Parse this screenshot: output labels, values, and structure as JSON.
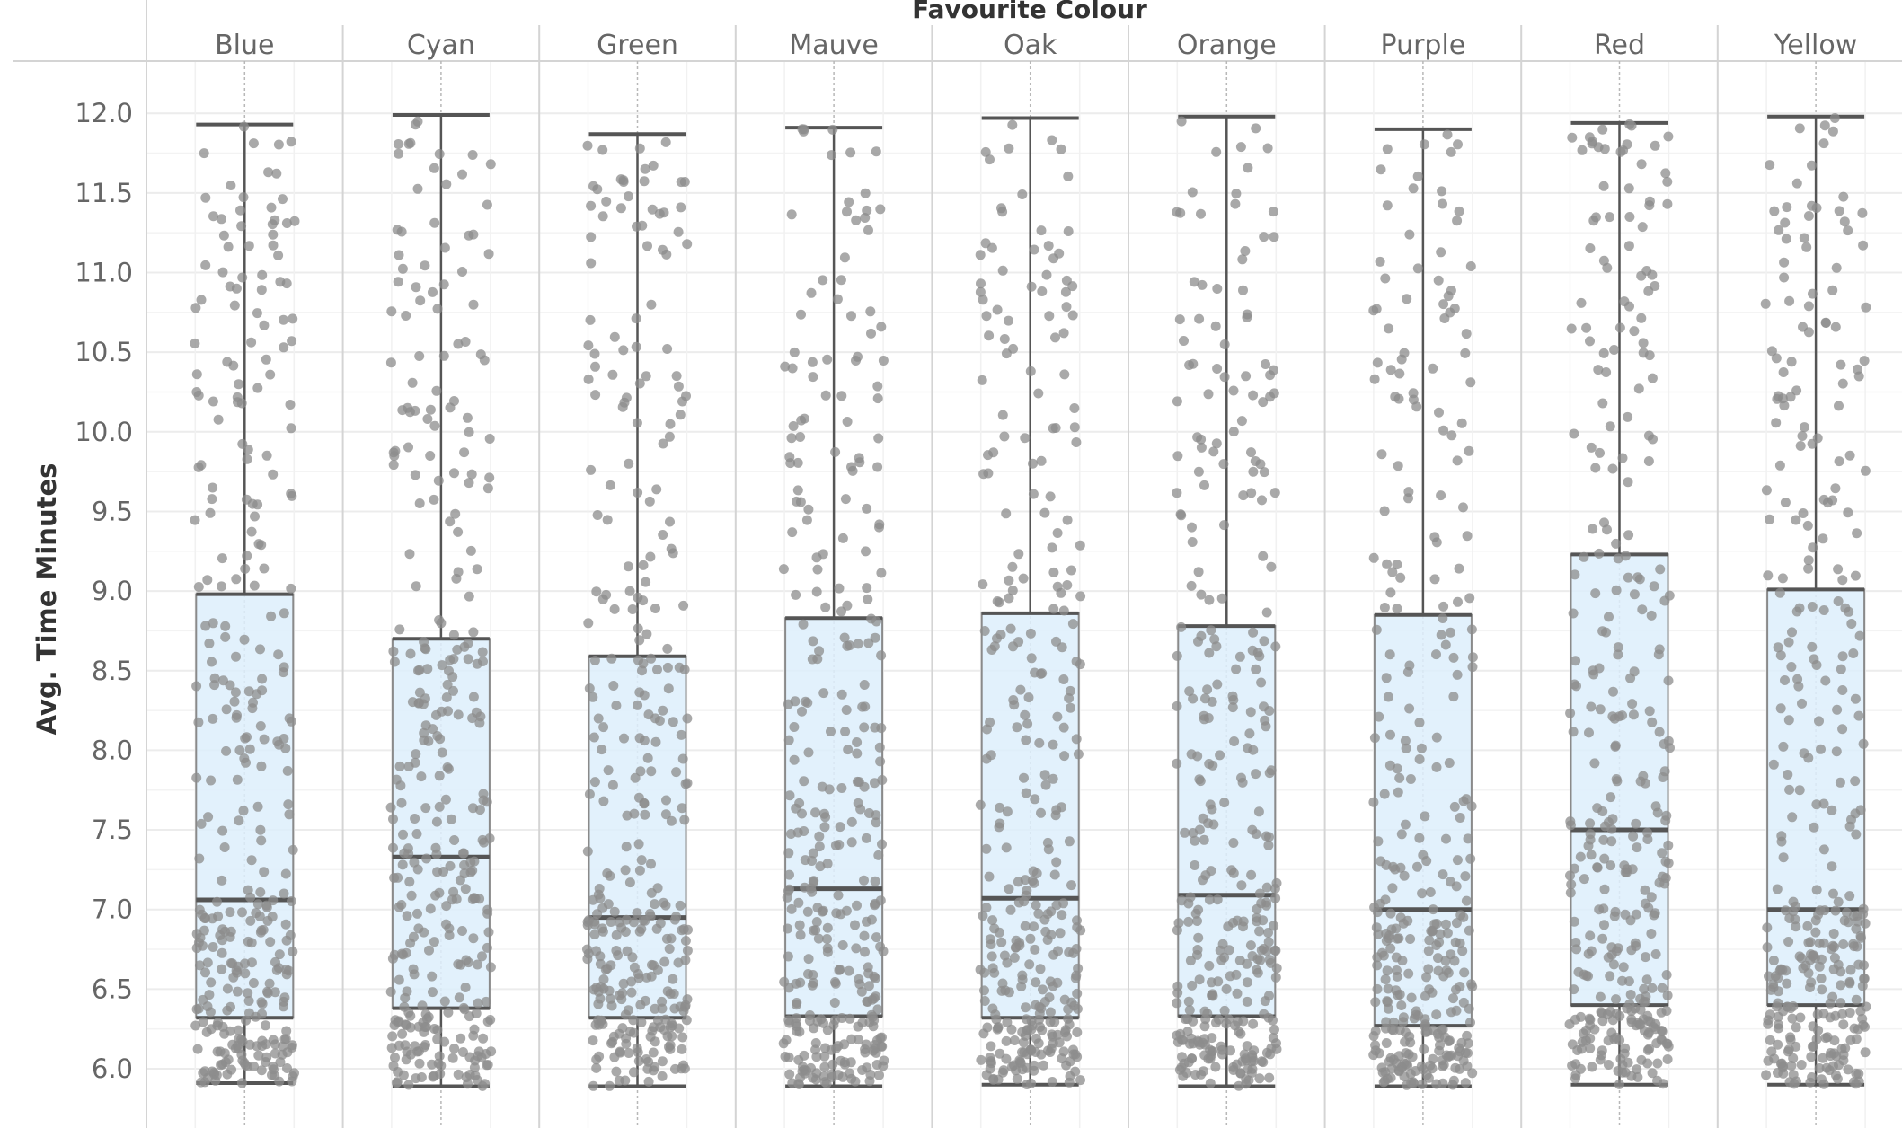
{
  "chart_data": {
    "type": "box",
    "title": "",
    "column_header": "Favourite Colour",
    "xlabel": "Favourite Colour",
    "ylabel": "Avg. Time Minutes",
    "ylim": [
      5.85,
      12.2
    ],
    "yticks": [
      6.0,
      6.5,
      7.0,
      7.5,
      8.0,
      8.5,
      9.0,
      9.5,
      10.0,
      10.5,
      11.0,
      11.5,
      12.0
    ],
    "grid": true,
    "categories": [
      "Blue",
      "Cyan",
      "Green",
      "Mauve",
      "Oak",
      "Orange",
      "Purple",
      "Red",
      "Yellow"
    ],
    "boxes": [
      {
        "category": "Blue",
        "whisker_low": 5.91,
        "q1": 6.32,
        "median": 7.06,
        "q3": 8.98,
        "whisker_high": 11.93
      },
      {
        "category": "Cyan",
        "whisker_low": 5.89,
        "q1": 6.38,
        "median": 7.33,
        "q3": 8.7,
        "whisker_high": 11.99
      },
      {
        "category": "Green",
        "whisker_low": 5.89,
        "q1": 6.32,
        "median": 6.95,
        "q3": 8.59,
        "whisker_high": 11.87
      },
      {
        "category": "Mauve",
        "whisker_low": 5.89,
        "q1": 6.33,
        "median": 7.13,
        "q3": 8.83,
        "whisker_high": 11.91
      },
      {
        "category": "Oak",
        "whisker_low": 5.9,
        "q1": 6.32,
        "median": 7.07,
        "q3": 8.86,
        "whisker_high": 11.97
      },
      {
        "category": "Orange",
        "whisker_low": 5.89,
        "q1": 6.33,
        "median": 7.09,
        "q3": 8.78,
        "whisker_high": 11.98
      },
      {
        "category": "Purple",
        "whisker_low": 5.89,
        "q1": 6.27,
        "median": 7.0,
        "q3": 8.85,
        "whisker_high": 11.9
      },
      {
        "category": "Red",
        "whisker_low": 5.9,
        "q1": 6.4,
        "median": 7.5,
        "q3": 9.23,
        "whisker_high": 11.94
      },
      {
        "category": "Yellow",
        "whisker_low": 5.9,
        "q1": 6.4,
        "median": 7.0,
        "q3": 9.01,
        "whisker_high": 11.98
      }
    ],
    "points": "jittered individual observations spread between whisker_low and whisker_high",
    "colors": {
      "box_fill": "#ddeefb",
      "box_stroke": "#8a8a8a",
      "line": "#555555",
      "point": "#8c8c8c",
      "grid": "#ececec",
      "pane_border": "#d4d4d4"
    }
  }
}
